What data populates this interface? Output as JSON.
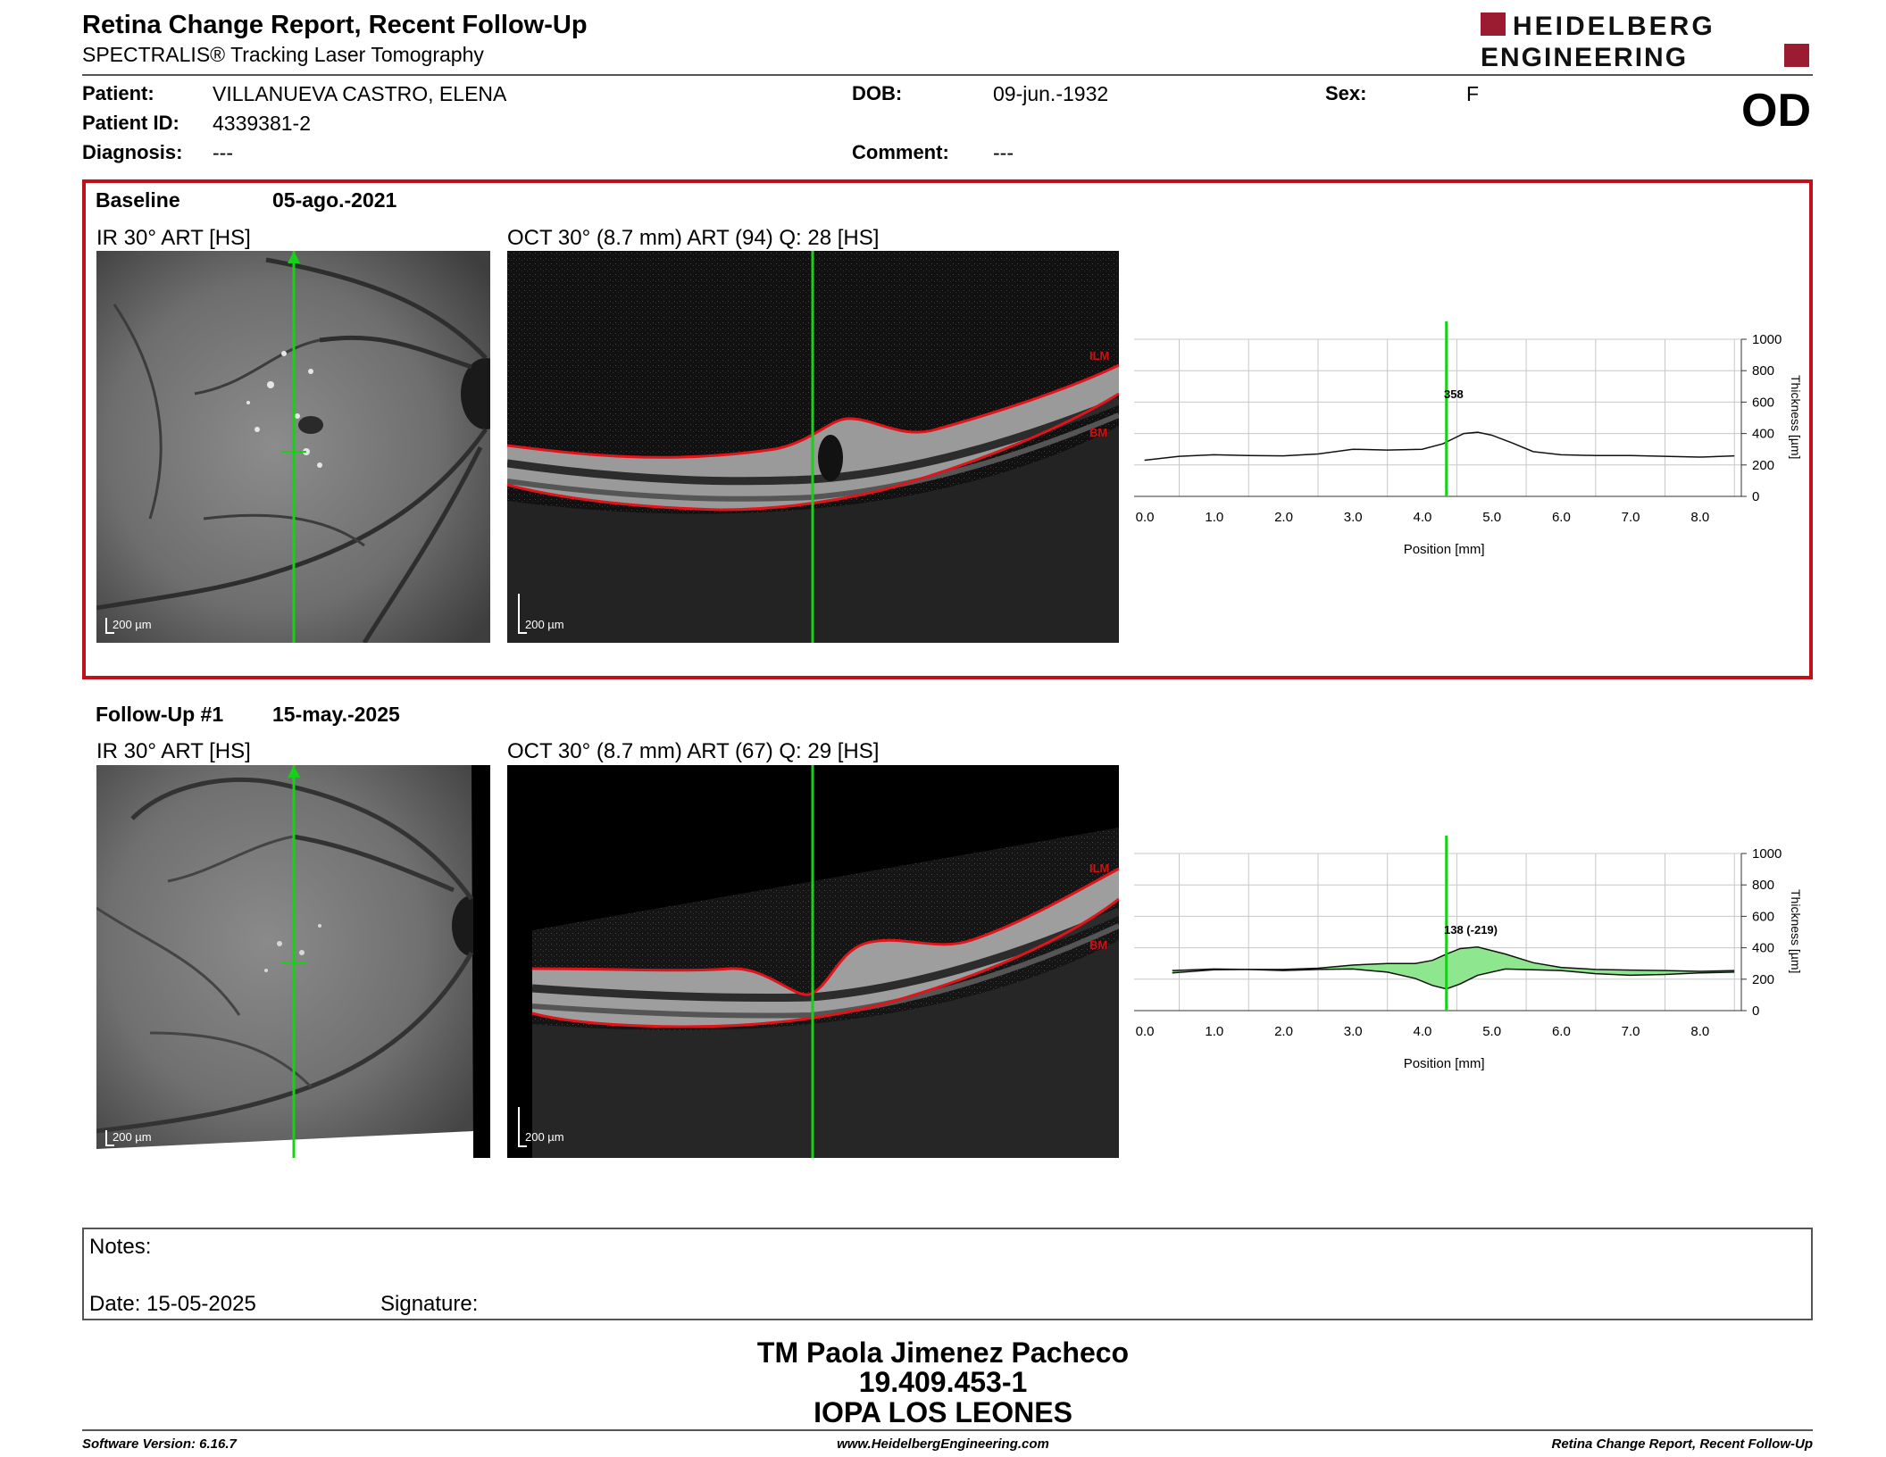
{
  "header": {
    "title": "Retina Change Report, Recent Follow-Up",
    "subtitle": "SPECTRALIS® Tracking Laser Tomography",
    "logo_line1": "HEIDELBERG",
    "logo_line2": "ENGINEERING",
    "eye": "OD"
  },
  "patient": {
    "patient_label": "Patient:",
    "patient_value": "VILLANUEVA CASTRO, ELENA",
    "id_label": "Patient ID:",
    "id_value": "4339381-2",
    "diagnosis_label": "Diagnosis:",
    "diagnosis_value": "---",
    "dob_label": "DOB:",
    "dob_value": "09-jun.-1932",
    "comment_label": "Comment:",
    "comment_value": "---",
    "sex_label": "Sex:",
    "sex_value": "F"
  },
  "exams": [
    {
      "label": "Baseline",
      "date": "05-ago.-2021",
      "ir_title": "IR 30° ART [HS]",
      "oct_title": "OCT 30° (8.7 mm) ART (94) Q: 28 [HS]",
      "scale": "200 µm",
      "ilm": "ILM",
      "bm": "BM",
      "marker_label": "358"
    },
    {
      "label": "Follow-Up #1",
      "date": "15-may.-2025",
      "ir_title": "IR 30° ART [HS]",
      "oct_title": "OCT 30° (8.7 mm) ART (67) Q: 29 [HS]",
      "scale": "200 µm",
      "ilm": "ILM",
      "bm": "BM",
      "marker_label": "138 (-219)"
    }
  ],
  "chart_data": [
    {
      "type": "line",
      "xlabel": "Position [mm]",
      "ylabel": "Thickness [µm]",
      "xlim": [
        -0.15,
        8.6
      ],
      "ylim": [
        0,
        1000
      ],
      "xticks": [
        "0.0",
        "1.0",
        "2.0",
        "3.0",
        "4.0",
        "5.0",
        "6.0",
        "7.0",
        "8.0"
      ],
      "yticks": [
        "0",
        "200",
        "400",
        "600",
        "800",
        "1000"
      ],
      "marker_x": 4.35,
      "series": [
        {
          "x": [
            0,
            0.5,
            1.0,
            1.5,
            2.0,
            2.5,
            3.0,
            3.5,
            4.0,
            4.3,
            4.6,
            4.8,
            5.0,
            5.3,
            5.6,
            6.0,
            6.5,
            7.0,
            7.5,
            8.0,
            8.5
          ],
          "values": [
            230,
            255,
            265,
            260,
            258,
            270,
            300,
            295,
            300,
            335,
            400,
            408,
            390,
            340,
            285,
            265,
            260,
            260,
            255,
            250,
            258
          ]
        }
      ]
    },
    {
      "type": "area",
      "xlabel": "Position [mm]",
      "ylabel": "Thickness [µm]",
      "xlim": [
        -0.15,
        8.6
      ],
      "ylim": [
        0,
        1000
      ],
      "xticks": [
        "0.0",
        "1.0",
        "2.0",
        "3.0",
        "4.0",
        "5.0",
        "6.0",
        "7.0",
        "8.0"
      ],
      "yticks": [
        "0",
        "200",
        "400",
        "600",
        "800",
        "1000"
      ],
      "marker_x": 4.35,
      "series": [
        {
          "x": [
            0.4,
            1.0,
            1.5,
            2.0,
            2.5,
            3.0,
            3.5,
            3.9,
            4.15,
            4.35,
            4.55,
            4.8,
            5.2,
            5.6,
            6.0,
            6.5,
            7.0,
            7.5,
            8.0,
            8.5
          ],
          "values": [
            255,
            265,
            262,
            255,
            262,
            265,
            245,
            205,
            160,
            138,
            170,
            225,
            265,
            260,
            255,
            235,
            225,
            230,
            240,
            245
          ]
        },
        {
          "x": [
            0.4,
            1.0,
            1.5,
            2.0,
            2.5,
            3.0,
            3.5,
            3.9,
            4.15,
            4.35,
            4.55,
            4.8,
            5.2,
            5.6,
            6.0,
            6.5,
            7.0,
            7.5,
            8.0,
            8.5
          ],
          "values": [
            240,
            260,
            262,
            262,
            270,
            290,
            300,
            300,
            320,
            360,
            395,
            405,
            360,
            305,
            275,
            262,
            258,
            255,
            250,
            255
          ]
        }
      ]
    }
  ],
  "notes": {
    "notes_label": "Notes:",
    "date_label": "Date: 15-05-2025",
    "signature_label": "Signature:"
  },
  "signatory": {
    "name": "TM Paola Jimenez Pacheco",
    "id": "19.409.453-1",
    "org": "IOPA LOS LEONES"
  },
  "footer": {
    "software": "Software Version: 6.16.7",
    "website": "www.HeidelbergEngineering.com",
    "report": "Retina Change Report, Recent Follow-Up"
  },
  "colors": {
    "frame_red": "#c0101a",
    "logo_red": "#9b1b30",
    "marker_green": "#19d019",
    "fill_green": "#8ee68e",
    "layer_red": "#e0141a"
  }
}
